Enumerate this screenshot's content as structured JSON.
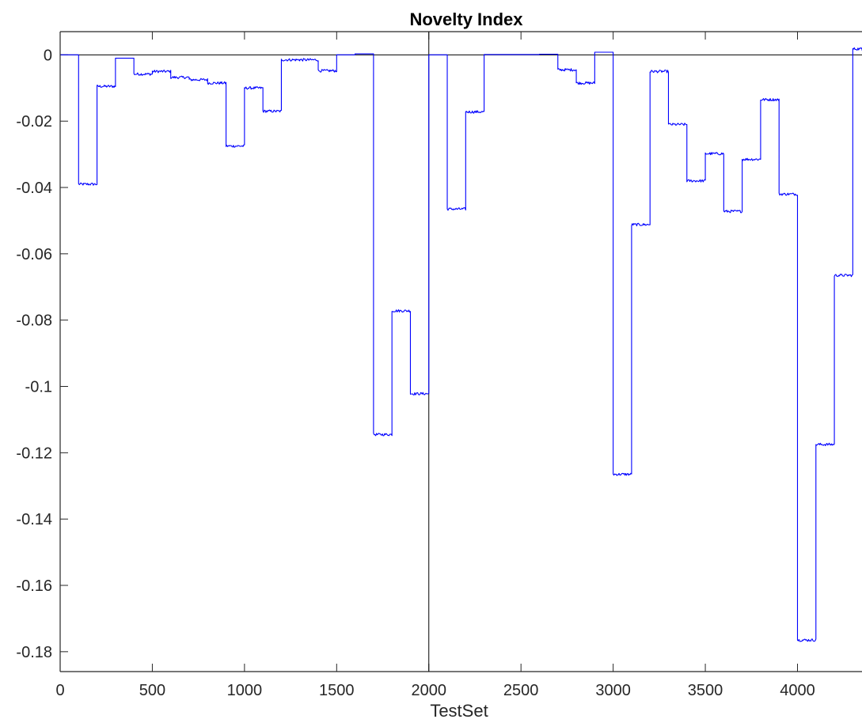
{
  "colors": {
    "series": "#0000ff",
    "axes": "#262626",
    "refline": "#000000"
  },
  "chart_data": {
    "type": "line",
    "title": "Novelty Index",
    "xlabel": "TestSet",
    "ylabel": "",
    "xlim": [
      0,
      4350
    ],
    "ylim": [
      -0.186,
      0.007
    ],
    "xticks": [
      0,
      500,
      1000,
      1500,
      2000,
      2500,
      3000,
      3500,
      4000
    ],
    "xtick_labels": [
      "0",
      "500",
      "1000",
      "1500",
      "2000",
      "2500",
      "3000",
      "3500",
      "4000"
    ],
    "yticks": [
      0,
      -0.02,
      -0.04,
      -0.06,
      -0.08,
      -0.1,
      -0.12,
      -0.14,
      -0.16,
      -0.18
    ],
    "ytick_labels": [
      "0",
      "-0.02",
      "-0.04",
      "-0.06",
      "-0.08",
      "-0.1",
      "-0.12",
      "-0.14",
      "-0.16",
      "-0.18"
    ],
    "grid": false,
    "reference_lines": {
      "horizontal_y": 0,
      "vertical_x": 2000
    },
    "series": [
      {
        "segment_length": 100,
        "noise_amplitude": 0.0004,
        "values": [
          0,
          -0.039,
          -0.0095,
          -0.001,
          -0.0058,
          -0.005,
          -0.0068,
          -0.0075,
          -0.0085,
          -0.0275,
          -0.01,
          -0.017,
          -0.0015,
          -0.0015,
          -0.0048,
          0,
          0.0003,
          -0.1145,
          -0.0772,
          -0.1022,
          0,
          -0.0465,
          -0.0172,
          0.0001,
          0.0001,
          0.0001,
          0.0002,
          -0.0045,
          -0.0085,
          0.0008,
          -0.1265,
          -0.0512,
          -0.005,
          -0.021,
          -0.038,
          -0.0298,
          -0.0472,
          -0.0315,
          -0.0135,
          -0.042,
          -0.1765,
          -0.1175,
          -0.0665,
          0.0018
        ]
      }
    ]
  }
}
